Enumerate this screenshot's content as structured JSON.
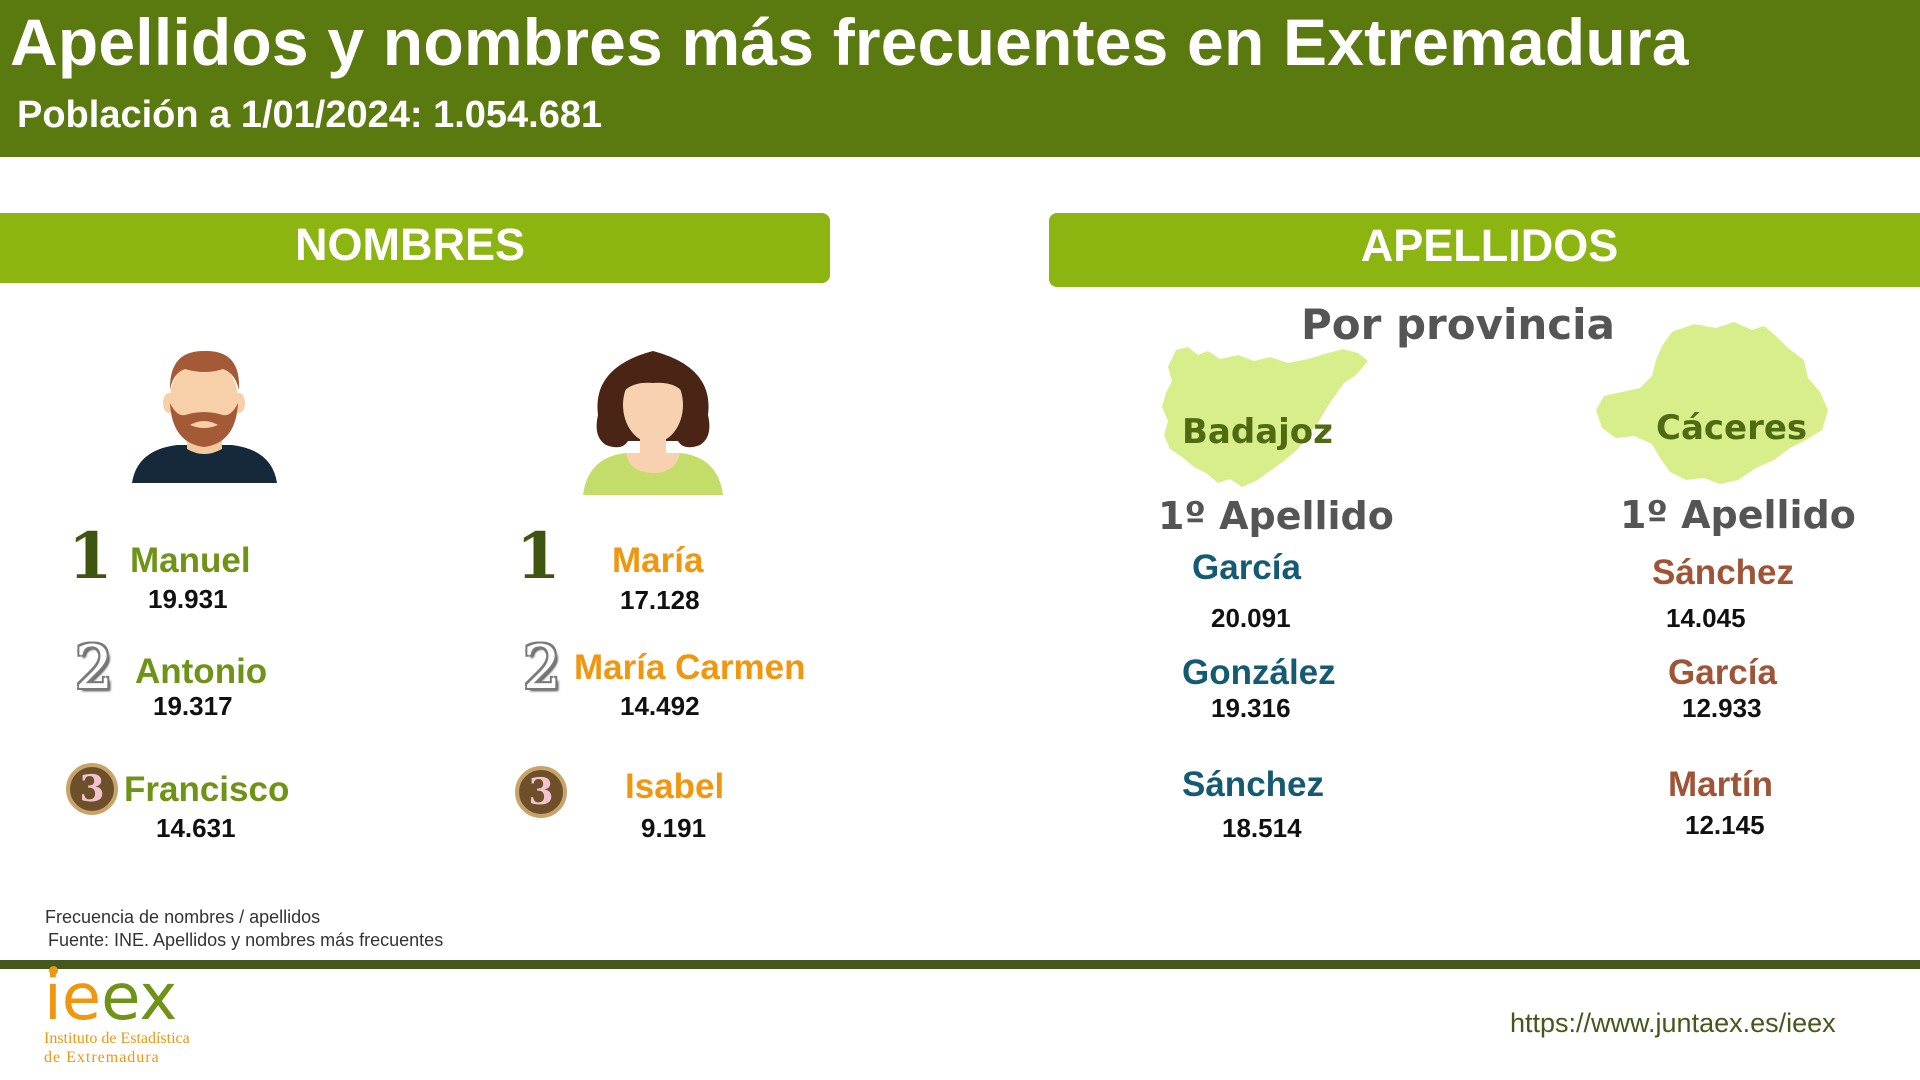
{
  "header": {
    "title": "Apellidos y nombres más frecuentes en Extremadura",
    "subtitle": "Población a 1/01/2024: 1.054.681"
  },
  "nombres": {
    "heading": "NOMBRES",
    "hombres": [
      {
        "rank": "1",
        "name": "Manuel",
        "count": "19.931"
      },
      {
        "rank": "2",
        "name": "Antonio",
        "count": "19.317"
      },
      {
        "rank": "3",
        "name": "Francisco",
        "count": "14.631"
      }
    ],
    "mujeres": [
      {
        "rank": "1",
        "name": "María",
        "count": "17.128"
      },
      {
        "rank": "2",
        "name": "María Carmen",
        "count": "14.492"
      },
      {
        "rank": "3",
        "name": "Isabel",
        "count": "9.191"
      }
    ]
  },
  "apellidos": {
    "heading": "APELLIDOS",
    "por_provincia": "Por provincia",
    "badajoz": {
      "label": "Badajoz",
      "column_heading": "1º Apellido",
      "items": [
        {
          "name": "García",
          "count": "20.091"
        },
        {
          "name": "González",
          "count": "19.316"
        },
        {
          "name": "Sánchez",
          "count": "18.514"
        }
      ]
    },
    "caceres": {
      "label": "Cáceres",
      "column_heading": "1º Apellido",
      "items": [
        {
          "name": "Sánchez",
          "count": "14.045"
        },
        {
          "name": "García",
          "count": "12.933"
        },
        {
          "name": "Martín",
          "count": "12.145"
        }
      ]
    }
  },
  "footer": {
    "note1": "Frecuencia  de nombres / apellidos",
    "note2": "Fuente: INE. Apellidos y nombres más frecuentes",
    "logo_word_1": "ie",
    "logo_word_2": "ex",
    "logo_line1": "Instituto de Estadística",
    "logo_line2": "de Extremadura",
    "url": "https://www.juntaex.es/ieex"
  },
  "colors": {
    "header_bg": "#5a7a10",
    "section_bar": "#8db511",
    "name_male": "#6f9317",
    "name_female": "#f0960f",
    "surname_badajoz": "#155a73",
    "surname_caceres": "#a05437",
    "map_fill": "#d8ee8a"
  },
  "icons": [
    "man-avatar-icon",
    "woman-avatar-icon",
    "badajoz-map-icon",
    "caceres-map-icon",
    "rank-1-badge",
    "rank-2-badge",
    "rank-3-medal"
  ]
}
